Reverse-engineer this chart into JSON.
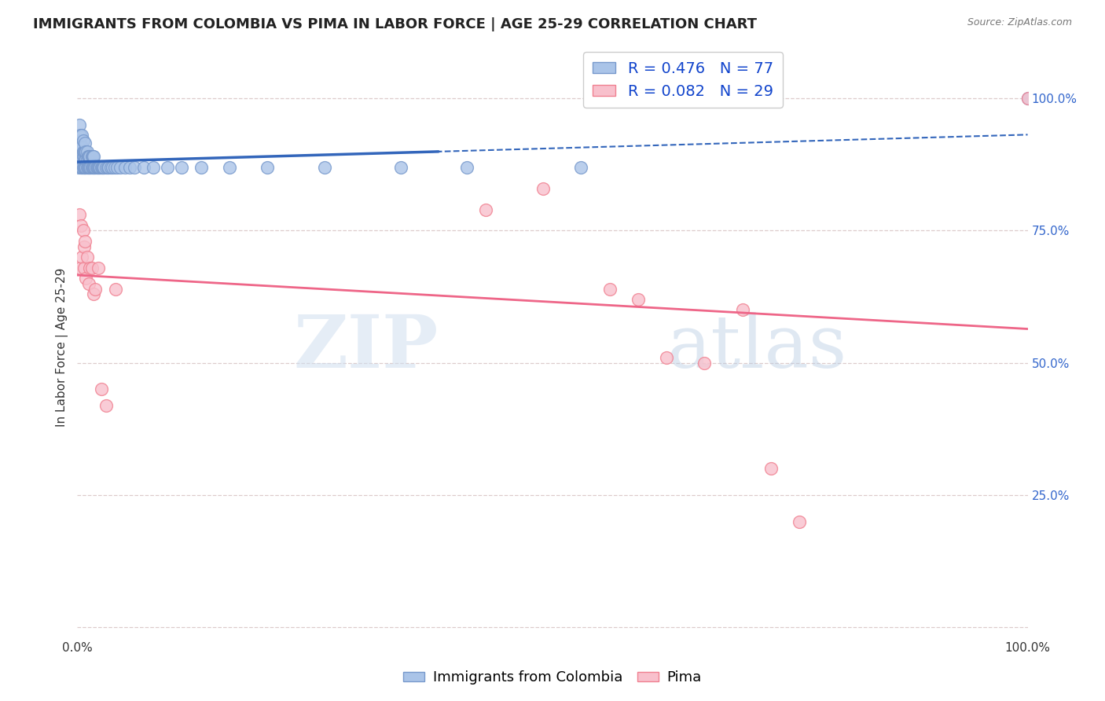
{
  "title": "IMMIGRANTS FROM COLOMBIA VS PIMA IN LABOR FORCE | AGE 25-29 CORRELATION CHART",
  "source": "Source: ZipAtlas.com",
  "ylabel": "In Labor Force | Age 25-29",
  "xlim": [
    0.0,
    1.0
  ],
  "ylim": [
    -0.02,
    1.08
  ],
  "background_color": "#ffffff",
  "grid_color": "#ddcccc",
  "blue_edge_color": "#7799cc",
  "blue_face_color": "#aac4e8",
  "pink_edge_color": "#f08090",
  "pink_face_color": "#f8c0cc",
  "R_blue": 0.476,
  "N_blue": 77,
  "R_pink": 0.082,
  "N_pink": 29,
  "blue_line_color": "#3366bb",
  "pink_line_color": "#ee6688",
  "blue_x": [
    0.001,
    0.002,
    0.002,
    0.003,
    0.003,
    0.003,
    0.004,
    0.004,
    0.004,
    0.005,
    0.005,
    0.005,
    0.005,
    0.006,
    0.006,
    0.006,
    0.006,
    0.007,
    0.007,
    0.007,
    0.008,
    0.008,
    0.008,
    0.008,
    0.009,
    0.009,
    0.009,
    0.01,
    0.01,
    0.01,
    0.011,
    0.011,
    0.012,
    0.012,
    0.013,
    0.013,
    0.014,
    0.015,
    0.015,
    0.016,
    0.016,
    0.017,
    0.017,
    0.018,
    0.019,
    0.02,
    0.021,
    0.022,
    0.023,
    0.024,
    0.025,
    0.026,
    0.027,
    0.028,
    0.03,
    0.032,
    0.033,
    0.035,
    0.037,
    0.039,
    0.042,
    0.045,
    0.05,
    0.055,
    0.06,
    0.07,
    0.08,
    0.095,
    0.11,
    0.13,
    0.16,
    0.2,
    0.26,
    0.34,
    0.41,
    0.53,
    1.0
  ],
  "blue_y": [
    0.87,
    0.92,
    0.95,
    0.88,
    0.9,
    0.93,
    0.87,
    0.89,
    0.91,
    0.87,
    0.89,
    0.91,
    0.93,
    0.87,
    0.89,
    0.9,
    0.92,
    0.87,
    0.89,
    0.9,
    0.87,
    0.885,
    0.9,
    0.915,
    0.87,
    0.885,
    0.9,
    0.87,
    0.885,
    0.9,
    0.87,
    0.89,
    0.87,
    0.89,
    0.87,
    0.89,
    0.87,
    0.87,
    0.89,
    0.87,
    0.89,
    0.87,
    0.89,
    0.87,
    0.87,
    0.87,
    0.87,
    0.87,
    0.87,
    0.87,
    0.87,
    0.87,
    0.87,
    0.87,
    0.87,
    0.87,
    0.87,
    0.87,
    0.87,
    0.87,
    0.87,
    0.87,
    0.87,
    0.87,
    0.87,
    0.87,
    0.87,
    0.87,
    0.87,
    0.87,
    0.87,
    0.87,
    0.87,
    0.87,
    0.87,
    0.87,
    1.0
  ],
  "pink_x": [
    0.002,
    0.003,
    0.004,
    0.005,
    0.006,
    0.007,
    0.007,
    0.008,
    0.009,
    0.01,
    0.012,
    0.013,
    0.015,
    0.017,
    0.019,
    0.022,
    0.025,
    0.03,
    0.04,
    0.43,
    0.49,
    0.56,
    0.59,
    0.62,
    0.66,
    0.7,
    0.73,
    0.76,
    1.0
  ],
  "pink_y": [
    0.78,
    0.68,
    0.76,
    0.7,
    0.75,
    0.72,
    0.68,
    0.73,
    0.66,
    0.7,
    0.65,
    0.68,
    0.68,
    0.63,
    0.64,
    0.68,
    0.45,
    0.42,
    0.64,
    0.79,
    0.83,
    0.64,
    0.62,
    0.51,
    0.5,
    0.6,
    0.3,
    0.2,
    1.0
  ],
  "ytick_positions": [
    0.0,
    0.25,
    0.5,
    0.75,
    1.0
  ],
  "ytick_labels_right": [
    "",
    "25.0%",
    "50.0%",
    "75.0%",
    "100.0%"
  ],
  "legend_label_blue": "Immigrants from Colombia",
  "legend_label_pink": "Pima",
  "watermark_zip": "ZIP",
  "watermark_atlas": "atlas",
  "title_fontsize": 13,
  "axis_label_fontsize": 11,
  "tick_fontsize": 11,
  "legend_fontsize": 13,
  "right_tick_color": "#3366cc",
  "marker_size": 130
}
